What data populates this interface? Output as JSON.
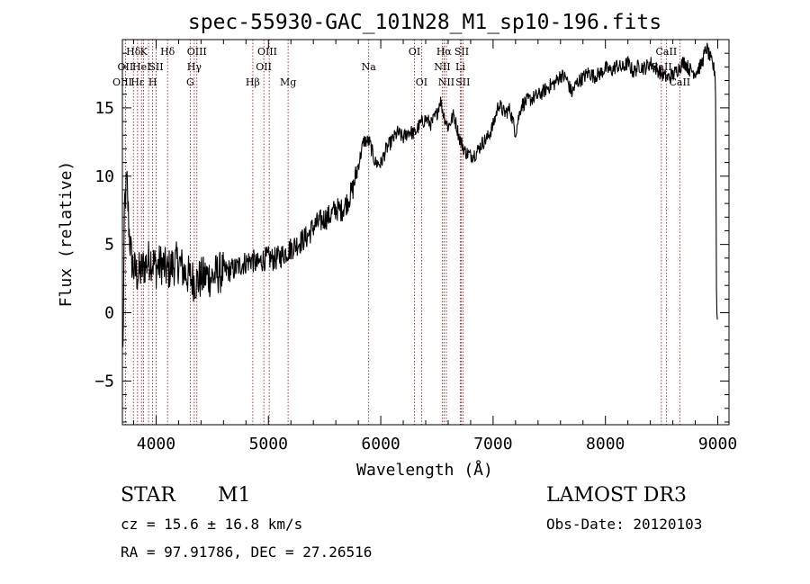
{
  "chart_data": {
    "type": "line",
    "title": "spec-55930-GAC_101N28_M1_sp10-196.fits",
    "xlabel": "Wavelength (Å)",
    "ylabel": "Flux (relative)",
    "xlim": [
      3700,
      9100
    ],
    "ylim": [
      -8.2,
      20
    ],
    "xticks": [
      "4000",
      "5000",
      "6000",
      "7000",
      "8000",
      "9000"
    ],
    "yticks": [
      "−5",
      "0",
      "5",
      "10",
      "15"
    ],
    "xtick_values": [
      4000,
      5000,
      6000,
      7000,
      8000,
      9000
    ],
    "ytick_values": [
      -5,
      0,
      5,
      10,
      15
    ],
    "series": [
      {
        "name": "flux",
        "x": [
          3705,
          3720,
          3740,
          3760,
          3780,
          3800,
          3830,
          3860,
          3900,
          3950,
          4000,
          4050,
          4100,
          4150,
          4200,
          4250,
          4300,
          4350,
          4400,
          4450,
          4500,
          4550,
          4600,
          4650,
          4700,
          4750,
          4800,
          4850,
          4900,
          4950,
          5000,
          5050,
          5100,
          5150,
          5200,
          5250,
          5300,
          5350,
          5400,
          5450,
          5500,
          5550,
          5600,
          5650,
          5700,
          5750,
          5800,
          5850,
          5900,
          5950,
          6000,
          6050,
          6100,
          6150,
          6200,
          6250,
          6300,
          6350,
          6400,
          6450,
          6500,
          6530,
          6560,
          6600,
          6650,
          6700,
          6750,
          6800,
          6850,
          6900,
          6950,
          7000,
          7050,
          7100,
          7150,
          7200,
          7250,
          7300,
          7350,
          7400,
          7450,
          7500,
          7550,
          7600,
          7650,
          7700,
          7750,
          7800,
          7850,
          7900,
          7950,
          8000,
          8050,
          8100,
          8150,
          8200,
          8250,
          8300,
          8350,
          8400,
          8450,
          8500,
          8550,
          8600,
          8650,
          8700,
          8750,
          8800,
          8850,
          8900,
          8950,
          8980,
          8990,
          9000
        ],
        "y": [
          -3,
          8,
          9.5,
          6,
          4,
          3.2,
          2.8,
          3,
          3.5,
          4,
          3.3,
          3.6,
          3,
          3.5,
          3.7,
          3,
          2.6,
          2.3,
          2.5,
          2.7,
          2.6,
          2.9,
          3,
          3.1,
          3.2,
          3.5,
          3.7,
          3.9,
          3.5,
          3.9,
          4,
          3.9,
          4.1,
          4.4,
          4.7,
          5,
          5.3,
          5.6,
          6.3,
          6.6,
          6.9,
          7.1,
          7.6,
          7.5,
          8.1,
          9,
          10.8,
          12.6,
          12.5,
          11,
          10.9,
          12,
          12.6,
          13.2,
          12.8,
          13.3,
          13.1,
          13.8,
          14.2,
          13.8,
          14.6,
          15.6,
          14.5,
          13.6,
          14.5,
          12.8,
          11.8,
          11.5,
          11.7,
          12.4,
          12.8,
          13.7,
          15.3,
          14.6,
          14.9,
          13.2,
          15.2,
          15.5,
          15.7,
          15.9,
          16.2,
          16.6,
          16.8,
          17.4,
          17.2,
          16.1,
          16.9,
          17.2,
          17.6,
          17.3,
          17.5,
          17.9,
          17.7,
          18.1,
          17.9,
          18.3,
          17.6,
          18.1,
          17.9,
          18.3,
          17.9,
          17.5,
          17.2,
          17.4,
          17.9,
          18.4,
          17.8,
          17.6,
          18.1,
          19.4,
          18.2,
          17.5,
          0,
          -0.5
        ]
      }
    ],
    "lines": [
      {
        "label": "Hδ",
        "x": 3798,
        "row": 0
      },
      {
        "label": "OII",
        "x": 3727,
        "row": 1
      },
      {
        "label": "OIII",
        "x": 3700,
        "row": 2
      },
      {
        "label": "Hε",
        "x": 3835,
        "row": 2
      },
      {
        "label": "K",
        "x": 3890,
        "row": 0
      },
      {
        "label": "HeI",
        "x": 3870,
        "row": 1
      },
      {
        "label": "H",
        "x": 3970,
        "row": 2
      },
      {
        "label": "SII",
        "x": 4000,
        "row": 1
      },
      {
        "label": "Hδ",
        "x": 4102,
        "row": 0
      },
      {
        "label": "OIII",
        "x": 4363,
        "row": 0
      },
      {
        "label": "Hγ",
        "x": 4340,
        "row": 1
      },
      {
        "label": "G",
        "x": 4304,
        "row": 2
      },
      {
        "label": "Hβ",
        "x": 4861,
        "row": 2
      },
      {
        "label": "OIII",
        "x": 4990,
        "row": 0
      },
      {
        "label": "OII",
        "x": 4959,
        "row": 1
      },
      {
        "label": "Mg",
        "x": 5175,
        "row": 2
      },
      {
        "label": "Na",
        "x": 5893,
        "row": 1
      },
      {
        "label": "OI",
        "x": 6300,
        "row": 0
      },
      {
        "label": "OI",
        "x": 6363,
        "row": 2
      },
      {
        "label": "Hα",
        "x": 6563,
        "row": 0
      },
      {
        "label": "SII",
        "x": 6720,
        "row": 0
      },
      {
        "label": "NII",
        "x": 6548,
        "row": 1
      },
      {
        "label": "Li",
        "x": 6708,
        "row": 1
      },
      {
        "label": "NII",
        "x": 6584,
        "row": 2
      },
      {
        "label": "SII",
        "x": 6731,
        "row": 2
      },
      {
        "label": "CaII",
        "x": 8542,
        "row": 0
      },
      {
        "label": "CaII",
        "x": 8498,
        "row": 1
      },
      {
        "label": "CaII",
        "x": 8662,
        "row": 2
      }
    ],
    "line_positions": [
      3727,
      3798,
      3835,
      3870,
      3889,
      3933,
      3968,
      4000,
      4102,
      4304,
      4340,
      4363,
      4861,
      4959,
      5007,
      5175,
      5893,
      6300,
      6363,
      6548,
      6563,
      6584,
      6708,
      6717,
      6731,
      8498,
      8542,
      8662
    ]
  },
  "info": {
    "class": "STAR",
    "subclass": "M1",
    "survey": "LAMOST DR3",
    "cz": "cz = 15.6 ± 16.8 km/s",
    "obs_date": "Obs-Date: 20120103",
    "radec": "RA =  97.91786, DEC =  27.26516"
  }
}
